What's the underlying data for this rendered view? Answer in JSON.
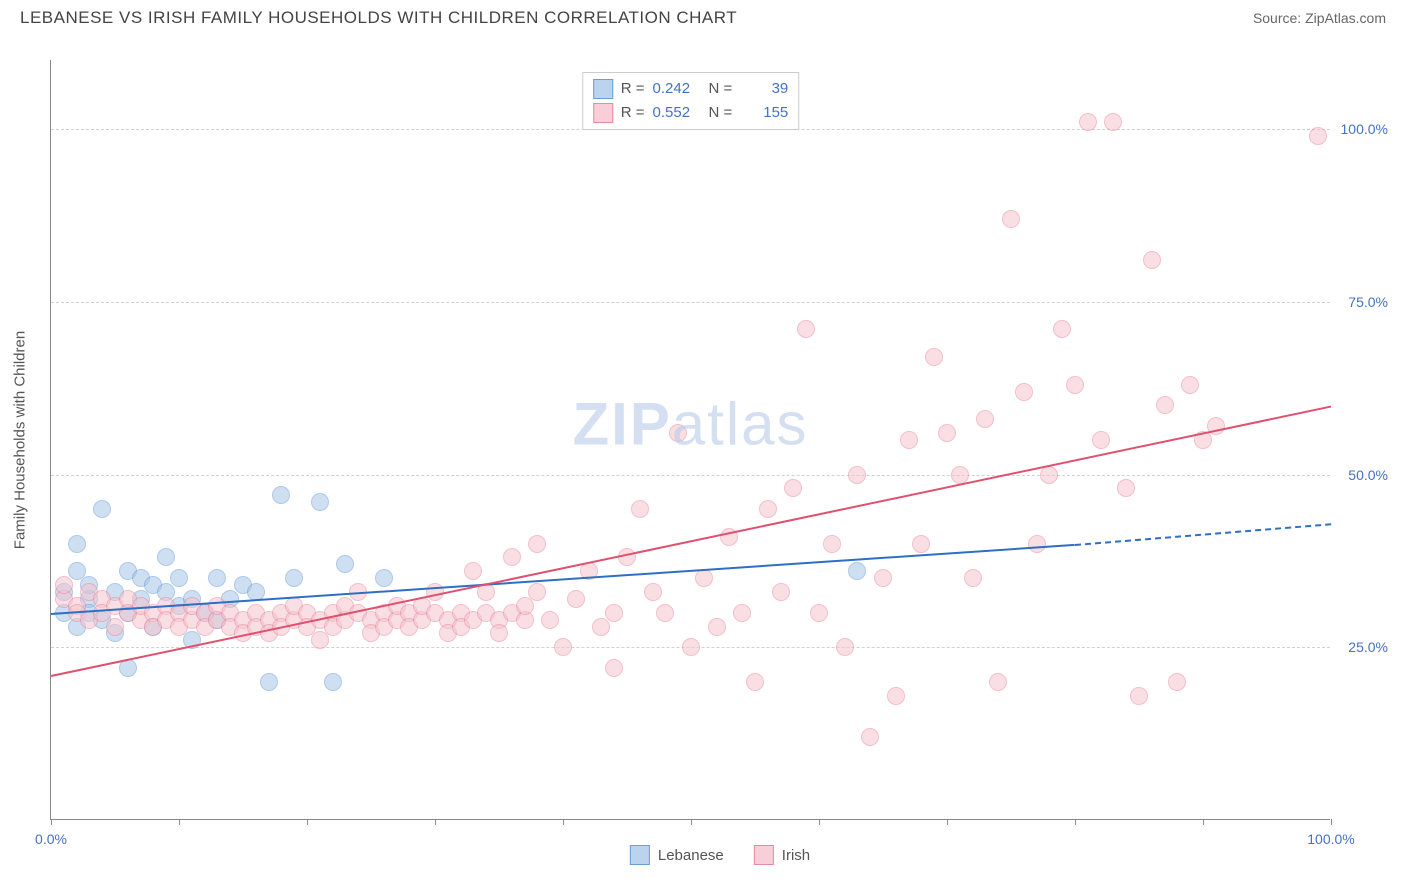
{
  "title": "LEBANESE VS IRISH FAMILY HOUSEHOLDS WITH CHILDREN CORRELATION CHART",
  "source": "Source: ZipAtlas.com",
  "watermark_bold": "ZIP",
  "watermark_rest": "atlas",
  "y_axis_label": "Family Households with Children",
  "chart": {
    "type": "scatter-correlation",
    "background_color": "#ffffff",
    "grid_color": "#d8d8d8",
    "axis_color": "#888888",
    "point_radius": 9,
    "point_opacity": 0.55,
    "xlim": [
      0,
      100
    ],
    "ylim": [
      0,
      110
    ],
    "y_ticks": [
      {
        "v": 25,
        "label": "25.0%"
      },
      {
        "v": 50,
        "label": "50.0%"
      },
      {
        "v": 75,
        "label": "75.0%"
      },
      {
        "v": 100,
        "label": "100.0%"
      }
    ],
    "x_ticks": [
      0,
      10,
      20,
      30,
      40,
      50,
      60,
      70,
      80,
      90,
      100
    ],
    "x_labels": [
      {
        "v": 0,
        "label": "0.0%"
      },
      {
        "v": 100,
        "label": "100.0%"
      }
    ],
    "series": [
      {
        "name": "Lebanese",
        "color_fill": "#a8c5e8",
        "color_stroke": "#6a9ed8",
        "swatch_fill": "#bcd3ee",
        "swatch_stroke": "#6a9ed8",
        "R": "0.242",
        "N": "39",
        "trend": {
          "x1": 0,
          "y1": 30,
          "x2": 80,
          "y2": 40,
          "dash_x2": 100,
          "dash_y2": 43,
          "color": "#2e6fc4"
        },
        "points": [
          [
            1,
            30
          ],
          [
            1,
            33
          ],
          [
            2,
            28
          ],
          [
            2,
            36
          ],
          [
            2,
            40
          ],
          [
            3,
            32
          ],
          [
            3,
            34
          ],
          [
            3,
            30
          ],
          [
            4,
            29
          ],
          [
            4,
            45
          ],
          [
            5,
            33
          ],
          [
            5,
            27
          ],
          [
            6,
            30
          ],
          [
            6,
            36
          ],
          [
            6,
            22
          ],
          [
            7,
            32
          ],
          [
            7,
            35
          ],
          [
            8,
            34
          ],
          [
            8,
            28
          ],
          [
            9,
            33
          ],
          [
            9,
            38
          ],
          [
            10,
            31
          ],
          [
            10,
            35
          ],
          [
            11,
            32
          ],
          [
            11,
            26
          ],
          [
            12,
            30
          ],
          [
            13,
            29
          ],
          [
            13,
            35
          ],
          [
            14,
            32
          ],
          [
            15,
            34
          ],
          [
            16,
            33
          ],
          [
            17,
            20
          ],
          [
            18,
            47
          ],
          [
            19,
            35
          ],
          [
            21,
            46
          ],
          [
            22,
            20
          ],
          [
            23,
            37
          ],
          [
            26,
            35
          ],
          [
            63,
            36
          ]
        ]
      },
      {
        "name": "Irish",
        "color_fill": "#f5c5ce",
        "color_stroke": "#e88ba0",
        "swatch_fill": "#f8cfd8",
        "swatch_stroke": "#e88ba0",
        "R": "0.552",
        "N": "155",
        "trend": {
          "x1": 0,
          "y1": 21,
          "x2": 100,
          "y2": 60,
          "color": "#e0506f"
        },
        "points": [
          [
            1,
            32
          ],
          [
            1,
            34
          ],
          [
            2,
            31
          ],
          [
            2,
            30
          ],
          [
            3,
            33
          ],
          [
            3,
            29
          ],
          [
            4,
            32
          ],
          [
            4,
            30
          ],
          [
            5,
            31
          ],
          [
            5,
            28
          ],
          [
            6,
            30
          ],
          [
            6,
            32
          ],
          [
            7,
            29
          ],
          [
            7,
            31
          ],
          [
            8,
            30
          ],
          [
            8,
            28
          ],
          [
            9,
            31
          ],
          [
            9,
            29
          ],
          [
            10,
            30
          ],
          [
            10,
            28
          ],
          [
            11,
            29
          ],
          [
            11,
            31
          ],
          [
            12,
            30
          ],
          [
            12,
            28
          ],
          [
            13,
            29
          ],
          [
            13,
            31
          ],
          [
            14,
            30
          ],
          [
            14,
            28
          ],
          [
            15,
            29
          ],
          [
            15,
            27
          ],
          [
            16,
            30
          ],
          [
            16,
            28
          ],
          [
            17,
            29
          ],
          [
            17,
            27
          ],
          [
            18,
            30
          ],
          [
            18,
            28
          ],
          [
            19,
            29
          ],
          [
            19,
            31
          ],
          [
            20,
            30
          ],
          [
            20,
            28
          ],
          [
            21,
            29
          ],
          [
            21,
            26
          ],
          [
            22,
            30
          ],
          [
            22,
            28
          ],
          [
            23,
            29
          ],
          [
            23,
            31
          ],
          [
            24,
            30
          ],
          [
            24,
            33
          ],
          [
            25,
            29
          ],
          [
            25,
            27
          ],
          [
            26,
            30
          ],
          [
            26,
            28
          ],
          [
            27,
            29
          ],
          [
            27,
            31
          ],
          [
            28,
            30
          ],
          [
            28,
            28
          ],
          [
            29,
            29
          ],
          [
            29,
            31
          ],
          [
            30,
            30
          ],
          [
            30,
            33
          ],
          [
            31,
            29
          ],
          [
            31,
            27
          ],
          [
            32,
            30
          ],
          [
            32,
            28
          ],
          [
            33,
            29
          ],
          [
            33,
            36
          ],
          [
            34,
            30
          ],
          [
            34,
            33
          ],
          [
            35,
            29
          ],
          [
            35,
            27
          ],
          [
            36,
            30
          ],
          [
            36,
            38
          ],
          [
            37,
            29
          ],
          [
            37,
            31
          ],
          [
            38,
            40
          ],
          [
            38,
            33
          ],
          [
            39,
            29
          ],
          [
            40,
            25
          ],
          [
            41,
            32
          ],
          [
            42,
            36
          ],
          [
            43,
            28
          ],
          [
            44,
            30
          ],
          [
            44,
            22
          ],
          [
            45,
            38
          ],
          [
            46,
            45
          ],
          [
            47,
            33
          ],
          [
            48,
            30
          ],
          [
            49,
            56
          ],
          [
            50,
            25
          ],
          [
            51,
            35
          ],
          [
            52,
            28
          ],
          [
            53,
            41
          ],
          [
            54,
            30
          ],
          [
            55,
            20
          ],
          [
            56,
            45
          ],
          [
            57,
            33
          ],
          [
            58,
            48
          ],
          [
            59,
            71
          ],
          [
            60,
            30
          ],
          [
            61,
            40
          ],
          [
            62,
            25
          ],
          [
            63,
            50
          ],
          [
            64,
            12
          ],
          [
            65,
            35
          ],
          [
            66,
            18
          ],
          [
            67,
            55
          ],
          [
            68,
            40
          ],
          [
            69,
            67
          ],
          [
            70,
            56
          ],
          [
            71,
            50
          ],
          [
            72,
            35
          ],
          [
            73,
            58
          ],
          [
            74,
            20
          ],
          [
            75,
            87
          ],
          [
            76,
            62
          ],
          [
            77,
            40
          ],
          [
            78,
            50
          ],
          [
            79,
            71
          ],
          [
            80,
            63
          ],
          [
            81,
            101
          ],
          [
            82,
            55
          ],
          [
            83,
            101
          ],
          [
            84,
            48
          ],
          [
            85,
            18
          ],
          [
            86,
            81
          ],
          [
            87,
            60
          ],
          [
            88,
            20
          ],
          [
            89,
            63
          ],
          [
            90,
            55
          ],
          [
            91,
            57
          ],
          [
            99,
            99
          ]
        ]
      }
    ]
  },
  "legend_bottom": [
    {
      "label": "Lebanese",
      "fill": "#bcd3ee",
      "stroke": "#6a9ed8"
    },
    {
      "label": "Irish",
      "fill": "#f8cfd8",
      "stroke": "#e88ba0"
    }
  ]
}
